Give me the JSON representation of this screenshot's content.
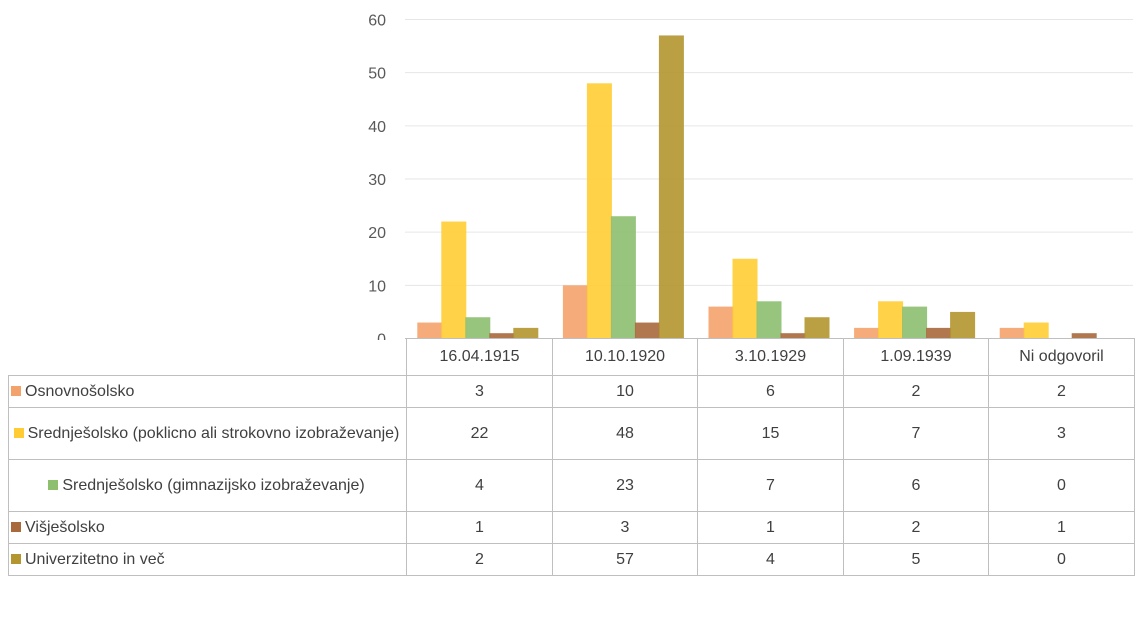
{
  "chart_data": {
    "type": "bar",
    "categories": [
      "16.04.1915",
      "10.10.1920",
      "3.10.1929",
      "1.09.1939",
      "Ni odgovoril"
    ],
    "ylim": [
      0,
      60
    ],
    "yticks": [
      0,
      10,
      20,
      30,
      40,
      50,
      60
    ],
    "grid": true,
    "legend": "data-table",
    "series": [
      {
        "name": "Osnovnošolsko",
        "values": [
          3,
          10,
          6,
          2,
          2
        ],
        "color": "#f4a26b"
      },
      {
        "name": "Srednješolsko (poklicno ali strokovno izobraževanje)",
        "values": [
          22,
          48,
          15,
          7,
          3
        ],
        "color": "#ffcd33"
      },
      {
        "name": "Srednješolsko (gimnazijsko izobraževanje)",
        "values": [
          4,
          23,
          7,
          6,
          0
        ],
        "color": "#8dbf6f"
      },
      {
        "name": "Višješolsko",
        "values": [
          1,
          3,
          1,
          2,
          1
        ],
        "color": "#a8693d"
      },
      {
        "name": "Univerzitetno in več",
        "values": [
          2,
          57,
          4,
          5,
          0
        ],
        "color": "#b3962f"
      }
    ]
  }
}
